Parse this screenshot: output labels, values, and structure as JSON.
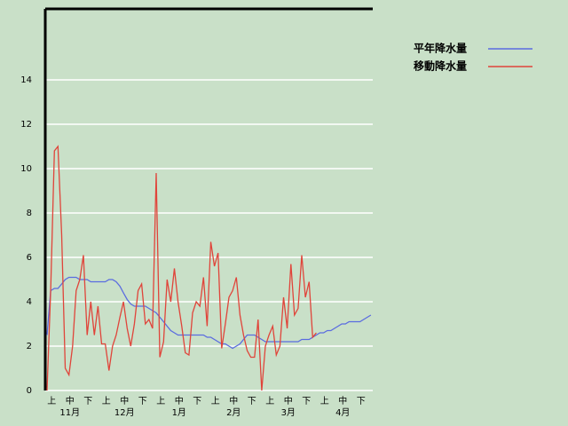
{
  "chart_data": {
    "type": "line",
    "categories": [
      null,
      null,
      "上",
      null,
      null,
      null,
      null,
      "中",
      null,
      null,
      null,
      null,
      "下",
      null,
      null,
      null,
      null,
      "上",
      null,
      null,
      null,
      null,
      "中",
      null,
      null,
      null,
      null,
      "下",
      null,
      null,
      null,
      null,
      "上",
      null,
      null,
      null,
      null,
      "中",
      null,
      null,
      null,
      null,
      "下",
      null,
      null,
      null,
      null,
      "上",
      null,
      null,
      null,
      null,
      "中",
      null,
      null,
      null,
      null,
      "下",
      null,
      null,
      null,
      null,
      "上",
      null,
      null,
      null,
      null,
      "中",
      null,
      null,
      null,
      null,
      "下",
      null,
      null,
      null,
      null,
      "上",
      null,
      null,
      null,
      null,
      "中",
      null,
      null,
      null,
      null,
      "下",
      null,
      null
    ],
    "months": [
      "11月",
      "12月",
      "1月",
      "2月",
      "3月",
      "4月"
    ],
    "series": [
      {
        "name": "平年降水量",
        "color": "#5a6be0",
        "values": [
          2.5,
          4.5,
          4.6,
          4.6,
          4.8,
          5.0,
          5.1,
          5.1,
          5.1,
          5.0,
          5.0,
          5.0,
          4.9,
          4.9,
          4.9,
          4.9,
          4.9,
          5.0,
          5.0,
          4.9,
          4.7,
          4.4,
          4.1,
          3.9,
          3.8,
          3.8,
          3.8,
          3.8,
          3.7,
          3.6,
          3.5,
          3.3,
          3.1,
          2.9,
          2.7,
          2.6,
          2.5,
          2.5,
          2.5,
          2.5,
          2.5,
          2.5,
          2.5,
          2.5,
          2.4,
          2.4,
          2.3,
          2.2,
          2.1,
          2.1,
          2.0,
          1.9,
          2.0,
          2.1,
          2.3,
          2.5,
          2.5,
          2.5,
          2.4,
          2.3,
          2.2,
          2.2,
          2.2,
          2.2,
          2.2,
          2.2,
          2.2,
          2.2,
          2.2,
          2.2,
          2.3,
          2.3,
          2.3,
          2.4,
          2.5,
          2.6,
          2.6,
          2.7,
          2.7,
          2.8,
          2.9,
          3.0,
          3.0,
          3.1,
          3.1,
          3.1,
          3.1,
          3.2,
          3.3,
          3.4
        ]
      },
      {
        "name": "移動降水量",
        "color": "#e0443a",
        "values": [
          0,
          4.5,
          10.8,
          11.0,
          7.0,
          1.0,
          0.7,
          2.0,
          4.5,
          5.0,
          6.1,
          2.5,
          4.0,
          2.5,
          3.8,
          2.1,
          2.1,
          0.9,
          2.0,
          2.5,
          3.3,
          4.0,
          2.8,
          2.0,
          3.0,
          4.5,
          4.8,
          3.0,
          3.2,
          2.8,
          9.8,
          1.5,
          2.2,
          5.0,
          4.0,
          5.5,
          4.0,
          2.9,
          1.7,
          1.6,
          3.5,
          4.0,
          3.8,
          5.1,
          2.9,
          6.7,
          5.6,
          6.2,
          1.9,
          3.0,
          4.2,
          4.5,
          5.1,
          3.4,
          2.5,
          1.8,
          1.5,
          1.5,
          3.2,
          0.0,
          2.0,
          2.5,
          2.9,
          1.6,
          2.0,
          4.2,
          2.8,
          5.7,
          3.4,
          3.7,
          6.1,
          4.2,
          4.9,
          2.4,
          2.6,
          null,
          null,
          null,
          null,
          null,
          null,
          null,
          null,
          null,
          null,
          null,
          null,
          null,
          null,
          null
        ]
      }
    ],
    "ylim": [
      0,
      17.2
    ],
    "yticks": [
      0,
      2,
      4,
      6,
      8,
      10,
      12,
      14
    ],
    "grid": true,
    "legend": "top-right"
  }
}
